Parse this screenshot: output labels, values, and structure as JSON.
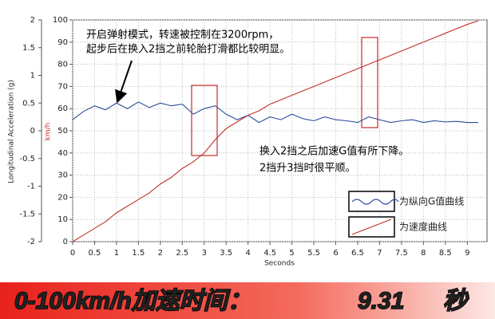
{
  "chart_data": {
    "type": "line",
    "x": [
      0,
      0.25,
      0.5,
      0.75,
      1,
      1.25,
      1.5,
      1.75,
      2,
      2.25,
      2.5,
      2.75,
      3,
      3.25,
      3.5,
      3.75,
      4,
      4.25,
      4.5,
      4.75,
      5,
      5.25,
      5.5,
      5.75,
      6,
      6.25,
      6.5,
      6.75,
      7,
      7.25,
      7.5,
      7.75,
      8,
      8.25,
      8.5,
      8.75,
      9,
      9.25
    ],
    "series": [
      {
        "name": "为纵向G值曲线",
        "color": "#2a4d9b",
        "values": [
          0.2,
          0.35,
          0.45,
          0.38,
          0.5,
          0.4,
          0.52,
          0.42,
          0.5,
          0.45,
          0.48,
          0.3,
          0.4,
          0.45,
          0.3,
          0.2,
          0.28,
          0.15,
          0.25,
          0.2,
          0.3,
          0.22,
          0.18,
          0.25,
          0.2,
          0.18,
          0.15,
          0.25,
          0.2,
          0.15,
          0.18,
          0.2,
          0.15,
          0.18,
          0.16,
          0.17,
          0.15,
          0.15
        ]
      },
      {
        "name": "为速度曲线",
        "color": "#c0302a",
        "axis": "y2",
        "values": [
          0,
          3,
          6,
          9,
          13,
          16,
          19,
          22,
          26,
          29,
          33,
          36,
          40,
          46,
          51,
          54,
          57,
          59,
          62,
          64,
          66,
          68,
          70,
          72,
          74,
          76,
          78,
          80,
          82,
          84,
          86,
          88,
          90,
          92,
          94,
          96,
          98,
          99.6
        ]
      }
    ],
    "xlabel": "Seconds",
    "ylabel": "Longitudinal Acceleration (g)",
    "y2label": "km/h",
    "xlim": [
      0,
      9.45
    ],
    "xticks": [
      0,
      0.5,
      1,
      1.5,
      2,
      2.5,
      3,
      3.5,
      4,
      4.5,
      5,
      5.5,
      6,
      6.5,
      7,
      7.5,
      8,
      8.5,
      9
    ],
    "ylim": [
      -2,
      2
    ],
    "yticks": [
      -2,
      -1.5,
      -1,
      -0.5,
      0,
      0.5,
      1,
      1.5,
      2
    ],
    "y2lim": [
      0,
      100
    ],
    "y2ticks": [
      0,
      10,
      20,
      30,
      40,
      50,
      60,
      70,
      80,
      90,
      100
    ],
    "grid": true,
    "annotations": [
      "开启弹射模式，转速被控制在3200rpm，",
      "起步后在换入2挡之前轮胎打滑都比较明显。",
      "换入2挡之后加速G值有所下降。",
      "2挡升3挡时很平顺。"
    ],
    "banner": {
      "label": "0-100km/h加速时间：",
      "value": "9.31",
      "unit": "秒"
    }
  }
}
